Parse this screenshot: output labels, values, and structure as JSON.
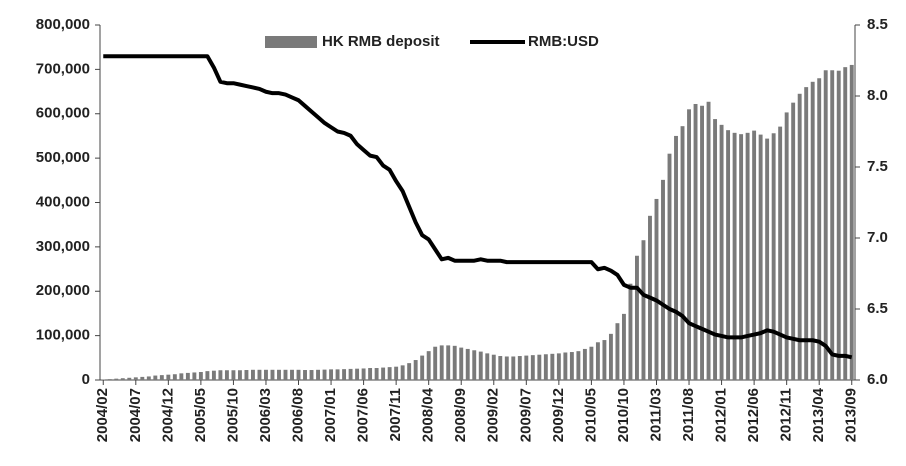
{
  "chart_data": {
    "type": "bar_line",
    "categories": [
      "2004/02",
      null,
      null,
      null,
      null,
      "2004/07",
      null,
      null,
      null,
      null,
      "2004/12",
      null,
      null,
      null,
      null,
      "2005/05",
      null,
      null,
      null,
      null,
      "2005/10",
      null,
      null,
      null,
      null,
      "2006/03",
      null,
      null,
      null,
      null,
      "2006/08",
      null,
      null,
      null,
      null,
      "2007/01",
      null,
      null,
      null,
      null,
      "2007/06",
      null,
      null,
      null,
      null,
      "2007/11",
      null,
      null,
      null,
      null,
      "2008/04",
      null,
      null,
      null,
      null,
      "2008/09",
      null,
      null,
      null,
      null,
      "2009/02",
      null,
      null,
      null,
      null,
      "2009/07",
      null,
      null,
      null,
      null,
      "2009/12",
      null,
      null,
      null,
      null,
      "2010/05",
      null,
      null,
      null,
      null,
      "2010/10",
      null,
      null,
      null,
      null,
      "2011/03",
      null,
      null,
      null,
      null,
      "2011/08",
      null,
      null,
      null,
      null,
      "2012/01",
      null,
      null,
      null,
      null,
      "2012/06",
      null,
      null,
      null,
      null,
      "2012/11",
      null,
      null,
      null,
      null,
      "2013/04",
      null,
      null,
      null,
      null,
      "2013/09"
    ],
    "series": [
      {
        "name": "HK RMB deposit",
        "color": "#7a7a7a",
        "axis": "y",
        "values": [
          900,
          2000,
          3000,
          4000,
          5000,
          6000,
          7000,
          8000,
          10000,
          11000,
          12000,
          13000,
          15000,
          16000,
          17000,
          18000,
          20000,
          21000,
          22000,
          22000,
          22000,
          22000,
          22500,
          23000,
          23000,
          23000,
          23000,
          23000,
          23000,
          23000,
          23000,
          22500,
          22500,
          23000,
          23400,
          24000,
          24000,
          24500,
          25000,
          25500,
          26000,
          27000,
          27000,
          28000,
          29000,
          30000,
          33000,
          38000,
          45000,
          55000,
          65000,
          75000,
          78000,
          78000,
          77000,
          73000,
          70000,
          67000,
          64000,
          60000,
          57000,
          54000,
          53000,
          53000,
          54000,
          55000,
          56000,
          57000,
          58000,
          59000,
          60000,
          62000,
          63000,
          65000,
          70000,
          75000,
          85000,
          90000,
          104000,
          128000,
          149000,
          217000,
          280000,
          315000,
          370000,
          408000,
          451000,
          510000,
          550000,
          572000,
          610000,
          622000,
          618000,
          627000,
          588000,
          575000,
          563000,
          557000,
          554000,
          557000,
          562000,
          553000,
          544000,
          556000,
          571000,
          603000,
          625000,
          645000,
          660000,
          672000,
          680000,
          698000,
          698000,
          697000,
          705000,
          710000
        ]
      },
      {
        "name": "RMB:USD",
        "color": "#000000",
        "axis": "y2",
        "values": [
          8.28,
          8.28,
          8.28,
          8.28,
          8.28,
          8.28,
          8.28,
          8.28,
          8.28,
          8.28,
          8.28,
          8.28,
          8.28,
          8.28,
          8.28,
          8.28,
          8.28,
          8.2,
          8.1,
          8.09,
          8.09,
          8.08,
          8.07,
          8.06,
          8.05,
          8.03,
          8.02,
          8.02,
          8.01,
          7.99,
          7.97,
          7.93,
          7.89,
          7.85,
          7.81,
          7.78,
          7.75,
          7.74,
          7.72,
          7.66,
          7.62,
          7.58,
          7.57,
          7.51,
          7.48,
          7.4,
          7.33,
          7.22,
          7.11,
          7.02,
          6.99,
          6.92,
          6.85,
          6.86,
          6.84,
          6.84,
          6.84,
          6.84,
          6.85,
          6.84,
          6.84,
          6.84,
          6.83,
          6.83,
          6.83,
          6.83,
          6.83,
          6.83,
          6.83,
          6.83,
          6.83,
          6.83,
          6.83,
          6.83,
          6.83,
          6.83,
          6.78,
          6.79,
          6.77,
          6.74,
          6.67,
          6.65,
          6.65,
          6.6,
          6.58,
          6.56,
          6.53,
          6.5,
          6.48,
          6.45,
          6.4,
          6.38,
          6.36,
          6.34,
          6.32,
          6.31,
          6.3,
          6.3,
          6.3,
          6.31,
          6.32,
          6.33,
          6.35,
          6.34,
          6.32,
          6.3,
          6.29,
          6.28,
          6.28,
          6.28,
          6.27,
          6.24,
          6.18,
          6.17,
          6.17,
          6.16
        ]
      }
    ],
    "ylim": [
      0,
      800000
    ],
    "yticks": [
      0,
      {
        "value": 100000,
        "label": "100,000"
      },
      {
        "value": 200000,
        "label": "200,000"
      },
      {
        "value": 300000,
        "label": "300,000"
      },
      {
        "value": 400000,
        "label": "400,000"
      },
      {
        "value": 500000,
        "label": "500,000"
      },
      {
        "value": 600000,
        "label": "600,000"
      },
      {
        "value": 700000,
        "label": "700,000"
      },
      {
        "value": 800000,
        "label": "800,000"
      }
    ],
    "y2lim": [
      6,
      8.5
    ],
    "y2ticks": [
      {
        "value": 6,
        "label": "6.0"
      },
      6.5,
      {
        "value": 7,
        "label": "7.0"
      },
      7.5,
      {
        "value": 8,
        "label": "8.0"
      },
      8.5
    ],
    "legend": "top"
  }
}
